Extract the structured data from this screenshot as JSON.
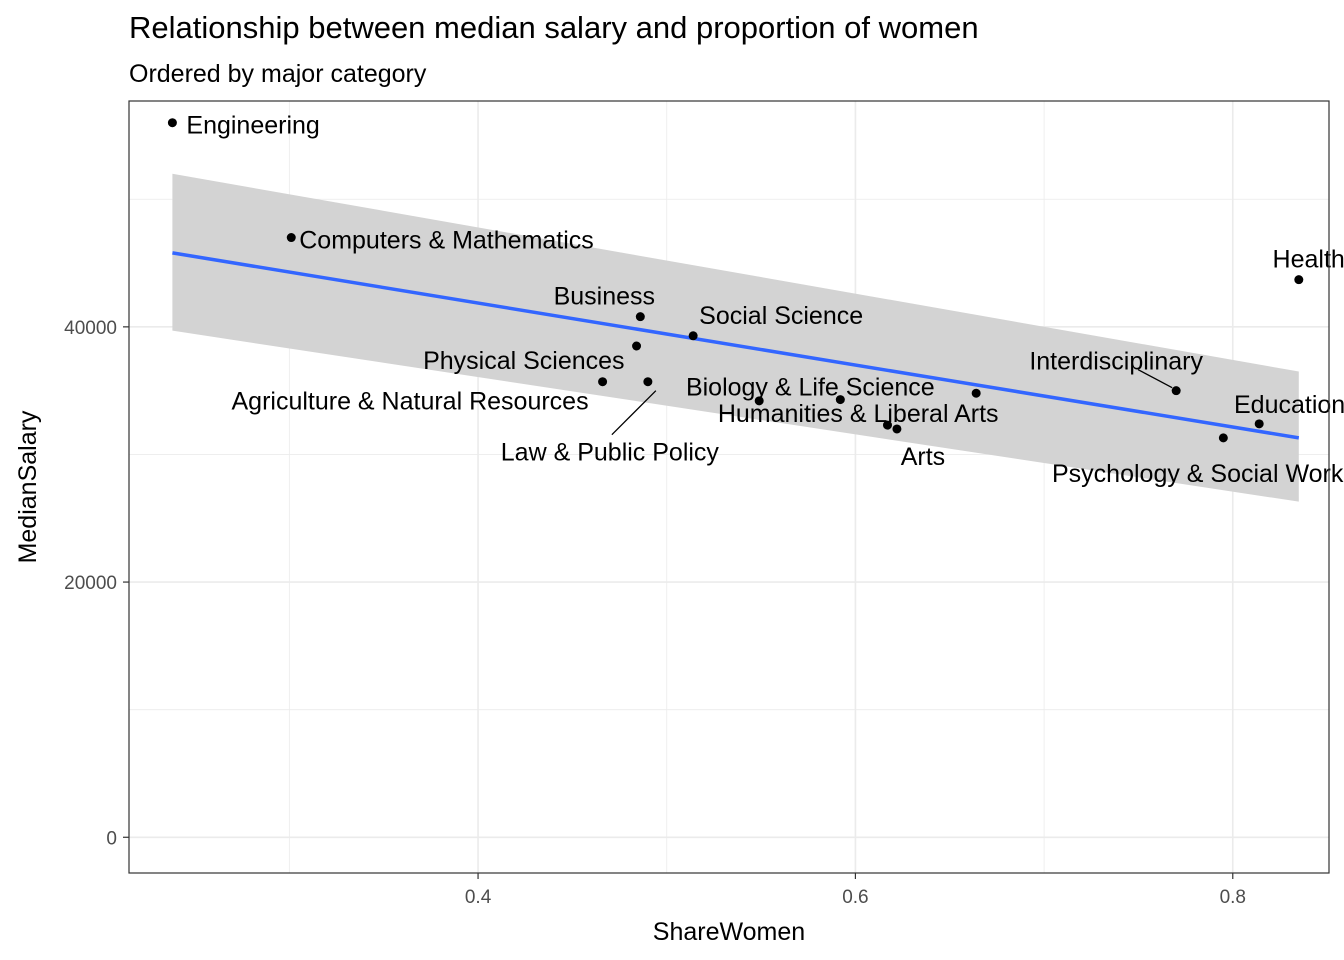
{
  "chart_data": {
    "type": "scatter",
    "title": "Relationship between median salary and proportion of women",
    "subtitle": "Ordered by major category",
    "xlabel": "ShareWomen",
    "ylabel": "MedianSalary",
    "xlim": [
      0.215,
      0.851
    ],
    "ylim": [
      -2800,
      57700
    ],
    "x_ticks": [
      0.4,
      0.6,
      0.8
    ],
    "x_tick_labels": [
      "0.4",
      "0.6",
      "0.8"
    ],
    "y_ticks": [
      0,
      20000,
      40000
    ],
    "y_tick_labels": [
      "0",
      "20000",
      "40000"
    ],
    "grid": true,
    "points": [
      {
        "label": "Engineering",
        "x": 0.238,
        "y": 56000
      },
      {
        "label": "Computers & Mathematics",
        "x": 0.301,
        "y": 47000
      },
      {
        "label": "Business",
        "x": 0.486,
        "y": 40800
      },
      {
        "label": "Social Science",
        "x": 0.514,
        "y": 39300
      },
      {
        "label": "Physical Sciences",
        "x": 0.484,
        "y": 38500
      },
      {
        "label": "Agriculture & Natural Resources",
        "x": 0.466,
        "y": 35700
      },
      {
        "label": "Law & Public Policy",
        "x": 0.49,
        "y": 35700
      },
      {
        "label": "Biology & Life Science",
        "x": 0.592,
        "y": 34300
      },
      {
        "label": "Humanities & Liberal Arts",
        "x": 0.549,
        "y": 34200
      },
      {
        "label": "Arts",
        "x": 0.622,
        "y": 32000
      },
      {
        "label": "",
        "x": 0.617,
        "y": 32300
      },
      {
        "label": "",
        "x": 0.664,
        "y": 34800
      },
      {
        "label": "Interdisciplinary",
        "x": 0.77,
        "y": 35000
      },
      {
        "label": "Education",
        "x": 0.814,
        "y": 32400
      },
      {
        "label": "Psychology & Social Work",
        "x": 0.795,
        "y": 31300
      },
      {
        "label": "Health",
        "x": 0.835,
        "y": 43700
      }
    ],
    "trend_line": {
      "x": [
        0.238,
        0.835
      ],
      "y": [
        45800,
        31300
      ]
    },
    "confidence_band": {
      "x": [
        0.238,
        0.835
      ],
      "upper": [
        52000,
        36500
      ],
      "lower": [
        39700,
        26300
      ]
    },
    "colors": {
      "point": "#000000",
      "trend": "#3366FF",
      "band": "#D3D3D3",
      "grid": "#EBEBEB",
      "panel_border": "#333333"
    }
  }
}
